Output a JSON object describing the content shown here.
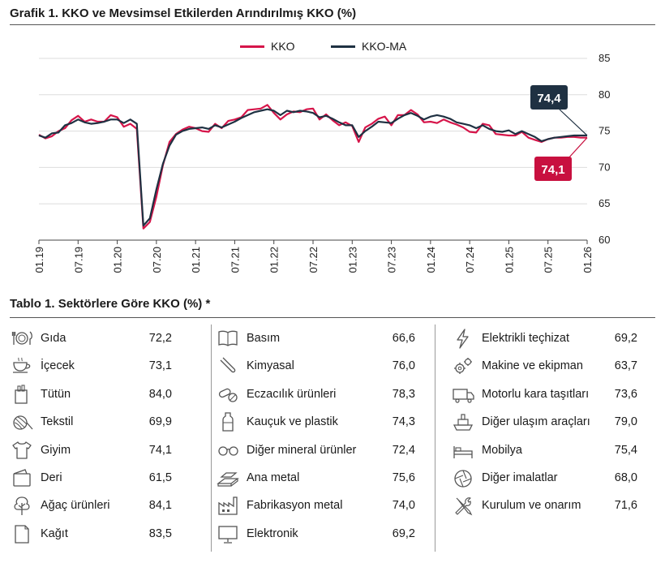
{
  "chart_title": "Grafik 1. KKO ve Mevsimsel Etkilerden Arındırılmış KKO (%)",
  "table_title": "Tablo 1. Sektörlere Göre KKO (%) *",
  "colors": {
    "kko": "#d6154a",
    "kko_ma": "#1f3142",
    "callout_kko": "#c8103f",
    "callout_ma": "#1f3142",
    "grid": "#dddddd"
  },
  "chart_data": {
    "type": "line",
    "ylim": [
      60,
      85
    ],
    "yticks": [
      "60",
      "65",
      "70",
      "75",
      "80",
      "85"
    ],
    "xticks": [
      "01.19",
      "07.19",
      "01.20",
      "07.20",
      "01.21",
      "07.21",
      "01.22",
      "07.22",
      "01.23",
      "07.23",
      "01.24",
      "07.24",
      "01.25",
      "07.25",
      "01.26"
    ],
    "x_start": "2019-01",
    "x_end": "2026-01",
    "grid": "horizontal",
    "legend_position": "top",
    "series": [
      {
        "name": "KKO",
        "values": [
          74.5,
          74.0,
          74.3,
          75.0,
          75.4,
          76.5,
          77.1,
          76.3,
          76.6,
          76.3,
          76.3,
          77.2,
          76.9,
          75.6,
          76.0,
          75.3,
          61.6,
          62.5,
          66.0,
          70.3,
          73.5,
          74.6,
          75.2,
          75.6,
          75.4,
          75.0,
          74.9,
          76.0,
          75.4,
          76.4,
          76.6,
          76.9,
          77.9,
          78.0,
          78.1,
          78.6,
          77.5,
          76.6,
          77.3,
          77.7,
          77.6,
          78.0,
          78.1,
          76.6,
          77.3,
          76.5,
          75.8,
          76.2,
          75.7,
          73.5,
          75.5,
          76.0,
          76.7,
          77.0,
          75.8,
          77.2,
          77.2,
          77.9,
          77.3,
          76.2,
          76.3,
          76.1,
          76.6,
          76.2,
          75.9,
          75.5,
          74.9,
          74.8,
          76.0,
          75.8,
          74.6,
          74.5,
          74.4,
          74.4,
          74.9,
          74.1,
          73.8,
          73.5,
          73.9,
          74.1,
          74.1,
          74.2,
          74.2,
          74.1,
          74.1
        ],
        "label": "74,1"
      },
      {
        "name": "KKO-MA",
        "values": [
          74.4,
          74.1,
          74.7,
          74.8,
          75.8,
          76.1,
          76.6,
          76.2,
          76.0,
          76.1,
          76.3,
          76.6,
          76.6,
          76.1,
          76.6,
          76.0,
          62.0,
          63.0,
          67.0,
          70.5,
          73.0,
          74.5,
          75.0,
          75.3,
          75.4,
          75.5,
          75.3,
          75.8,
          75.5,
          75.9,
          76.3,
          76.8,
          77.2,
          77.6,
          77.8,
          78.0,
          77.8,
          77.2,
          77.8,
          77.6,
          77.8,
          77.7,
          77.5,
          76.9,
          77.1,
          76.7,
          76.2,
          75.8,
          75.8,
          74.2,
          75.0,
          75.6,
          76.3,
          76.2,
          76.1,
          76.7,
          77.2,
          77.5,
          77.1,
          76.6,
          77.0,
          77.2,
          77.0,
          76.7,
          76.2,
          76.0,
          75.8,
          75.4,
          75.8,
          75.3,
          75.0,
          74.9,
          75.1,
          74.6,
          75.0,
          74.6,
          74.2,
          73.6,
          73.9,
          74.1,
          74.2,
          74.3,
          74.4,
          74.4,
          74.4
        ],
        "label": "74,4"
      }
    ]
  },
  "sectors": {
    "col1": [
      {
        "name": "Gıda",
        "value": "72,2",
        "icon": "plate-cutlery-icon"
      },
      {
        "name": "İçecek",
        "value": "73,1",
        "icon": "teacup-icon"
      },
      {
        "name": "Tütün",
        "value": "84,0",
        "icon": "cigarette-pack-icon"
      },
      {
        "name": "Tekstil",
        "value": "69,9",
        "icon": "yarn-icon"
      },
      {
        "name": "Giyim",
        "value": "74,1",
        "icon": "tshirt-icon"
      },
      {
        "name": "Deri",
        "value": "61,5",
        "icon": "wallet-icon"
      },
      {
        "name": "Ağaç ürünleri",
        "value": "84,1",
        "icon": "tree-icon"
      },
      {
        "name": "Kağıt",
        "value": "83,5",
        "icon": "paper-icon"
      }
    ],
    "col2": [
      {
        "name": "Basım",
        "value": "66,6",
        "icon": "book-icon"
      },
      {
        "name": "Kimyasal",
        "value": "76,0",
        "icon": "test-tube-icon"
      },
      {
        "name": "Eczacılık ürünleri",
        "value": "78,3",
        "icon": "pills-icon"
      },
      {
        "name": "Kauçuk ve plastik",
        "value": "74,3",
        "icon": "bottle-icon"
      },
      {
        "name": "Diğer mineral ürünler",
        "value": "72,4",
        "icon": "glasses-icon"
      },
      {
        "name": "Ana metal",
        "value": "75,6",
        "icon": "metal-bars-icon"
      },
      {
        "name": "Fabrikasyon metal",
        "value": "74,0",
        "icon": "factory-icon"
      },
      {
        "name": "Elektronik",
        "value": "69,2",
        "icon": "monitor-icon"
      }
    ],
    "col3": [
      {
        "name": "Elektrikli teçhizat",
        "value": "69,2",
        "icon": "lightning-icon"
      },
      {
        "name": "Makine ve ekipman",
        "value": "63,7",
        "icon": "gears-icon"
      },
      {
        "name": "Motorlu kara taşıtları",
        "value": "73,6",
        "icon": "truck-icon"
      },
      {
        "name": "Diğer ulaşım araçları",
        "value": "79,0",
        "icon": "ship-icon"
      },
      {
        "name": "Mobilya",
        "value": "75,4",
        "icon": "bed-icon"
      },
      {
        "name": "Diğer imalatlar",
        "value": "68,0",
        "icon": "aperture-icon"
      },
      {
        "name": "Kurulum ve onarım",
        "value": "71,6",
        "icon": "tools-icon"
      }
    ]
  }
}
